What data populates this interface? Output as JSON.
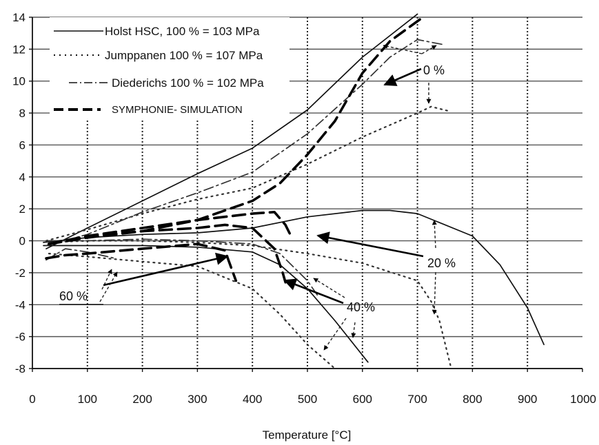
{
  "chart_data": {
    "type": "line",
    "title": "",
    "xlabel": "Temperature [°C]",
    "ylabel": "",
    "xlim": [
      0,
      1000
    ],
    "ylim": [
      -8,
      14
    ],
    "x_ticks": [
      "0",
      "100",
      "200",
      "300",
      "400",
      "500",
      "600",
      "700",
      "800",
      "900",
      "1000"
    ],
    "y_ticks": [
      "-8",
      "-6",
      "-4",
      "-2",
      "0",
      "2",
      "4",
      "6",
      "8",
      "10",
      "12",
      "14"
    ],
    "grid": true,
    "legend_position": "top-left",
    "legend": [
      {
        "label": "Holst HSC, 100 % = 103 MPa",
        "style": "solid"
      },
      {
        "label": "Jumppanen 100 % = 107 MPa",
        "style": "dotted"
      },
      {
        "label": "Diederichs 100 % = 102 MPa",
        "style": "dashdot"
      },
      {
        "label": "SYMPHONIE- SIMULATION",
        "style": "dashed"
      }
    ],
    "annotations": [
      "0 %",
      "20 %",
      "40 %",
      "60 %"
    ],
    "series": [
      {
        "group": "Holst HSC",
        "load": "0 %",
        "style": "solid",
        "points": [
          [
            25,
            -0.5
          ],
          [
            100,
            0.8
          ],
          [
            200,
            2.5
          ],
          [
            300,
            4.2
          ],
          [
            400,
            5.8
          ],
          [
            500,
            8.2
          ],
          [
            600,
            11.5
          ],
          [
            700,
            14.2
          ]
        ]
      },
      {
        "group": "Holst HSC",
        "load": "20 %",
        "style": "solid",
        "points": [
          [
            20,
            -0.1
          ],
          [
            100,
            0.2
          ],
          [
            200,
            0.4
          ],
          [
            300,
            0.5
          ],
          [
            400,
            0.8
          ],
          [
            500,
            1.5
          ],
          [
            600,
            1.9
          ],
          [
            650,
            1.9
          ],
          [
            700,
            1.7
          ],
          [
            800,
            0.3
          ],
          [
            850,
            -1.5
          ],
          [
            900,
            -4.2
          ],
          [
            930,
            -6.5
          ]
        ]
      },
      {
        "group": "Holst HSC",
        "load": "40 %",
        "style": "solid",
        "points": [
          [
            20,
            -0.3
          ],
          [
            100,
            -0.3
          ],
          [
            200,
            -0.3
          ],
          [
            300,
            -0.4
          ],
          [
            400,
            -0.7
          ],
          [
            450,
            -1.5
          ],
          [
            500,
            -3.0
          ],
          [
            550,
            -5.0
          ],
          [
            610,
            -7.6
          ]
        ]
      },
      {
        "group": "Jumppanen",
        "load": "0 %",
        "style": "dotted",
        "points": [
          [
            25,
            0.0
          ],
          [
            100,
            0.7
          ],
          [
            200,
            1.7
          ],
          [
            300,
            2.6
          ],
          [
            400,
            3.3
          ],
          [
            500,
            4.8
          ],
          [
            600,
            6.5
          ],
          [
            700,
            8.0
          ],
          [
            725,
            8.4
          ],
          [
            760,
            8.1
          ]
        ]
      },
      {
        "group": "Jumppanen",
        "load": "20 %",
        "style": "dotted",
        "points": [
          [
            30,
            -0.1
          ],
          [
            100,
            0.0
          ],
          [
            200,
            0.0
          ],
          [
            300,
            -0.1
          ],
          [
            400,
            -0.3
          ],
          [
            500,
            -0.8
          ],
          [
            600,
            -1.4
          ],
          [
            700,
            -2.5
          ],
          [
            725,
            -3.8
          ],
          [
            740,
            -5.0
          ],
          [
            760,
            -7.8
          ]
        ]
      },
      {
        "group": "Jumppanen",
        "load": "40 %",
        "style": "dotted",
        "points": [
          [
            30,
            -0.8
          ],
          [
            100,
            -1.0
          ],
          [
            200,
            -1.3
          ],
          [
            300,
            -1.6
          ],
          [
            400,
            -3.0
          ],
          [
            450,
            -4.6
          ],
          [
            500,
            -6.5
          ],
          [
            550,
            -8.0
          ]
        ]
      },
      {
        "group": "Diederichs",
        "load": "0 %",
        "style": "dashdot",
        "points": [
          [
            25,
            -0.3
          ],
          [
            100,
            0.4
          ],
          [
            200,
            1.8
          ],
          [
            300,
            3.0
          ],
          [
            400,
            4.3
          ],
          [
            500,
            6.7
          ],
          [
            600,
            9.8
          ],
          [
            650,
            11.5
          ],
          [
            700,
            12.6
          ],
          [
            745,
            12.3
          ]
        ]
      },
      {
        "group": "Diederichs",
        "load": "20 %",
        "style": "dashdot",
        "points": [
          [
            30,
            0.0
          ],
          [
            100,
            0.0
          ],
          [
            200,
            0.1
          ],
          [
            300,
            0.0
          ],
          [
            400,
            -0.2
          ],
          [
            450,
            -0.8
          ],
          [
            500,
            -2.5
          ],
          [
            520,
            -3.5
          ]
        ]
      },
      {
        "group": "Diederichs",
        "load": "60 %",
        "style": "dashdot",
        "points": [
          [
            25,
            -1.2
          ],
          [
            60,
            -0.5
          ],
          [
            100,
            -0.7
          ],
          [
            150,
            -1.1
          ]
        ]
      },
      {
        "group": "SYMPHONIE- SIMULATION",
        "load": "0 %",
        "style": "dashed",
        "points": [
          [
            30,
            -0.2
          ],
          [
            100,
            0.2
          ],
          [
            200,
            0.6
          ],
          [
            300,
            1.3
          ],
          [
            400,
            2.5
          ],
          [
            450,
            3.6
          ],
          [
            500,
            5.4
          ],
          [
            550,
            7.5
          ],
          [
            600,
            10.5
          ],
          [
            650,
            12.5
          ],
          [
            710,
            14.0
          ]
        ]
      },
      {
        "group": "SYMPHONIE- SIMULATION",
        "load": "20 %",
        "style": "dashed",
        "points": [
          [
            30,
            -0.2
          ],
          [
            100,
            0.3
          ],
          [
            200,
            0.8
          ],
          [
            300,
            1.3
          ],
          [
            400,
            1.7
          ],
          [
            440,
            1.8
          ],
          [
            460,
            1.0
          ],
          [
            470,
            0.3
          ]
        ]
      },
      {
        "group": "SYMPHONIE- SIMULATION",
        "load": "40 %",
        "style": "dashed",
        "points": [
          [
            30,
            -0.2
          ],
          [
            100,
            0.3
          ],
          [
            200,
            0.6
          ],
          [
            300,
            0.8
          ],
          [
            350,
            1.0
          ],
          [
            400,
            0.8
          ],
          [
            440,
            -0.5
          ],
          [
            455,
            -2.0
          ],
          [
            460,
            -2.6
          ]
        ]
      },
      {
        "group": "SYMPHONIE- SIMULATION",
        "load": "60 %",
        "style": "dashed",
        "points": [
          [
            25,
            -1.1
          ],
          [
            60,
            -0.9
          ],
          [
            100,
            -0.8
          ],
          [
            200,
            -0.5
          ],
          [
            300,
            -0.2
          ],
          [
            350,
            -0.6
          ],
          [
            370,
            -2.5
          ]
        ]
      }
    ]
  }
}
